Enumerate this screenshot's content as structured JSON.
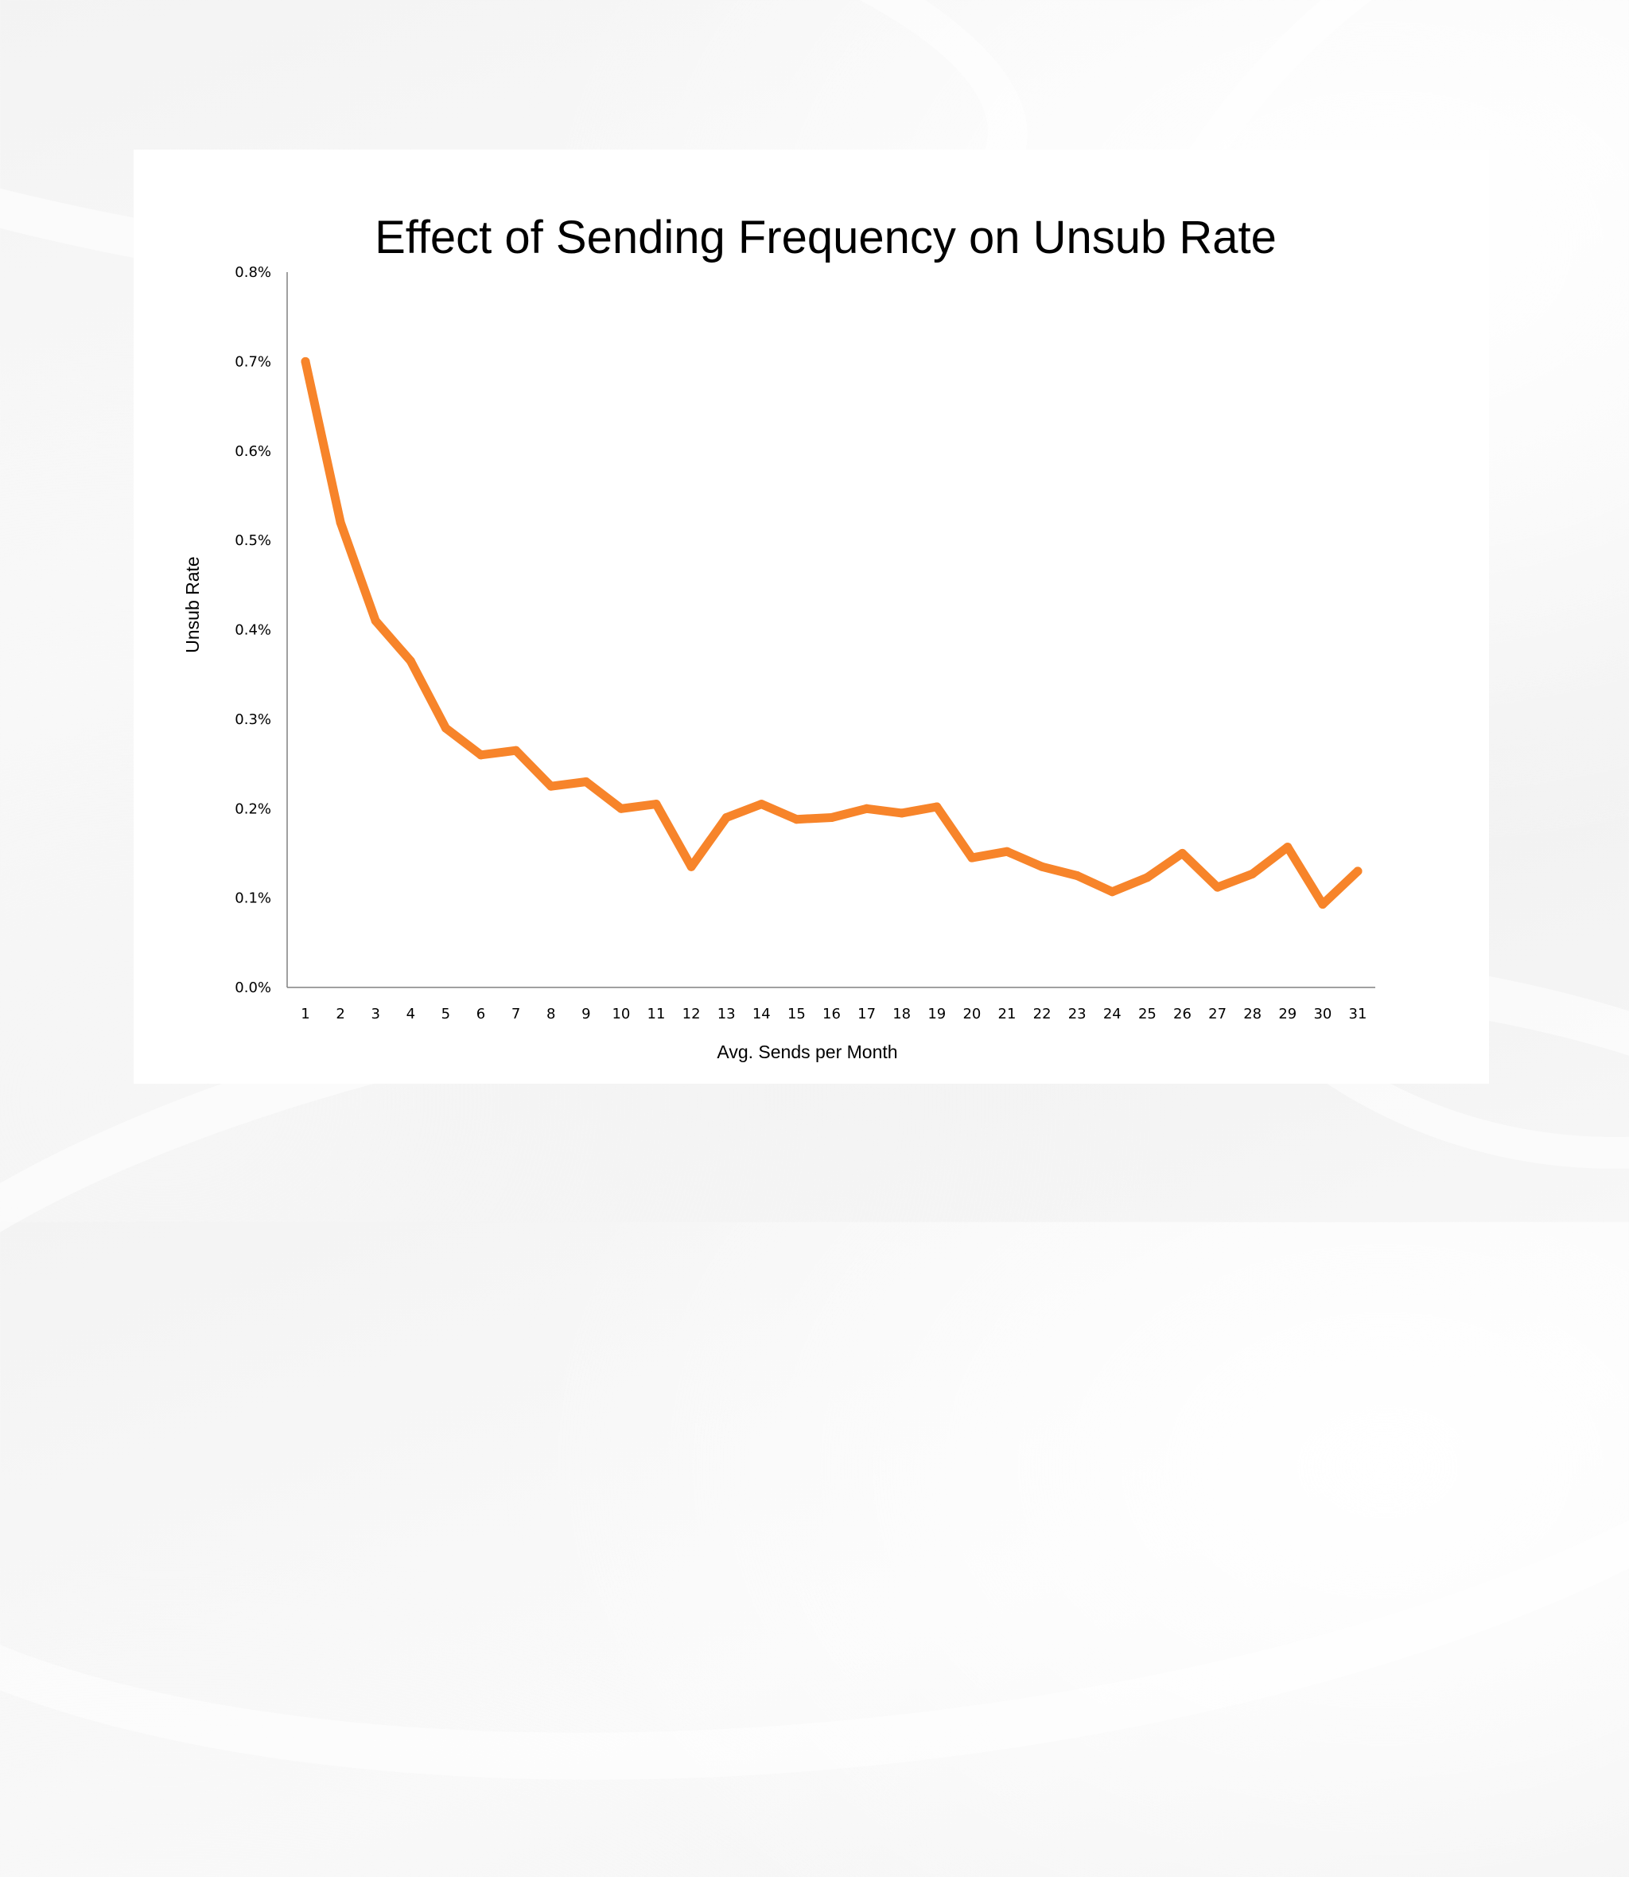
{
  "chart_data": {
    "type": "line",
    "title": "Effect of Sending Frequency on Unsub Rate",
    "xlabel": "Avg. Sends per Month",
    "ylabel": "Unsub Rate",
    "categories": [
      "1",
      "2",
      "3",
      "4",
      "5",
      "6",
      "7",
      "8",
      "9",
      "10",
      "11",
      "12",
      "13",
      "14",
      "15",
      "16",
      "17",
      "18",
      "19",
      "20",
      "21",
      "22",
      "23",
      "24",
      "25",
      "26",
      "27",
      "28",
      "29",
      "30",
      "31"
    ],
    "yticks": [
      "0.0%",
      "0.1%",
      "0.2%",
      "0.3%",
      "0.4%",
      "0.5%",
      "0.6%",
      "0.7%",
      "0.8%"
    ],
    "ylim": [
      0,
      0.8
    ],
    "grid": false,
    "legend": "none",
    "series": [
      {
        "color": "#F7842A",
        "values": [
          0.7,
          0.52,
          0.41,
          0.365,
          0.29,
          0.26,
          0.265,
          0.225,
          0.23,
          0.2,
          0.205,
          0.135,
          0.19,
          0.205,
          0.188,
          0.19,
          0.2,
          0.195,
          0.202,
          0.145,
          0.152,
          0.135,
          0.125,
          0.107,
          0.123,
          0.15,
          0.112,
          0.127,
          0.157,
          0.093,
          0.13
        ]
      }
    ]
  }
}
